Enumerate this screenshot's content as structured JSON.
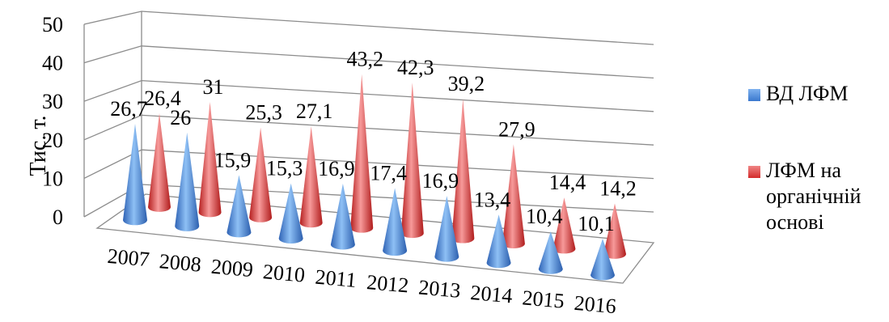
{
  "chart_data": {
    "type": "bar",
    "ylabel": "Тис. т.",
    "ylim": [
      0,
      50
    ],
    "yticks": [
      "0",
      "10",
      "20",
      "30",
      "40",
      "50"
    ],
    "categories": [
      "2007",
      "2008",
      "2009",
      "2010",
      "2011",
      "2012",
      "2013",
      "2014",
      "2015",
      "2016"
    ],
    "series": [
      {
        "name": "ВД ЛФМ",
        "values": [
          26.7,
          26,
          15.9,
          15.3,
          16.9,
          17.4,
          16.9,
          13.4,
          10.4,
          10.1
        ],
        "labels": [
          "26,7",
          "26",
          "15,9",
          "15,3",
          "16,9",
          "17,4",
          "16,9",
          "13,4",
          "10,4",
          "10,1"
        ],
        "color": "#3a78cf"
      },
      {
        "name": "ЛФМ на органічній основі",
        "values": [
          26.4,
          31,
          25.3,
          27.1,
          43.2,
          42.3,
          39.2,
          27.9,
          14.4,
          14.2
        ],
        "labels": [
          "26,4",
          "31",
          "25,3",
          "27,1",
          "43,2",
          "42,3",
          "39,2",
          "27,9",
          "14,4",
          "14,2"
        ],
        "color": "#d32b2b"
      }
    ],
    "legend_position": "right",
    "grid": true
  },
  "legend": {
    "series1": "ВД ЛФМ",
    "series2_line1": "ЛФМ на",
    "series2_line2": "органічній",
    "series2_line3": "основі"
  }
}
